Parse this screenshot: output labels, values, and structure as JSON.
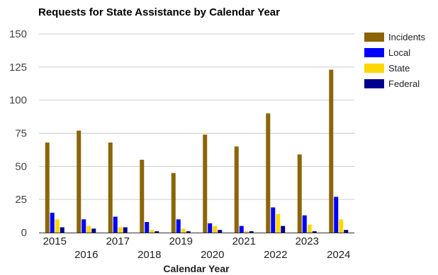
{
  "chart_data": {
    "type": "bar",
    "title": "Requests for State Assistance by Calendar Year",
    "xlabel": "Calendar Year",
    "ylabel": "",
    "ylim": [
      0,
      150
    ],
    "yticks": [
      0,
      25,
      50,
      75,
      100,
      125,
      150
    ],
    "grid": true,
    "legend_position": "right",
    "categories": [
      "2015",
      "2016",
      "2017",
      "2018",
      "2019",
      "2020",
      "2021",
      "2022",
      "2023",
      "2024"
    ],
    "series": [
      {
        "name": "Incidents",
        "color": "#8b6508",
        "values": [
          68,
          77,
          68,
          55,
          45,
          74,
          65,
          90,
          59,
          123
        ]
      },
      {
        "name": "Local",
        "color": "#0000ff",
        "values": [
          15,
          10,
          12,
          8,
          10,
          7,
          5,
          19,
          13,
          27
        ]
      },
      {
        "name": "State",
        "color": "#ffd700",
        "values": [
          10,
          5,
          4,
          2,
          3,
          5,
          1,
          14,
          6,
          10
        ]
      },
      {
        "name": "Federal",
        "color": "#00008b",
        "values": [
          4,
          3,
          4,
          1,
          1,
          2,
          1,
          5,
          1,
          2
        ]
      }
    ]
  }
}
